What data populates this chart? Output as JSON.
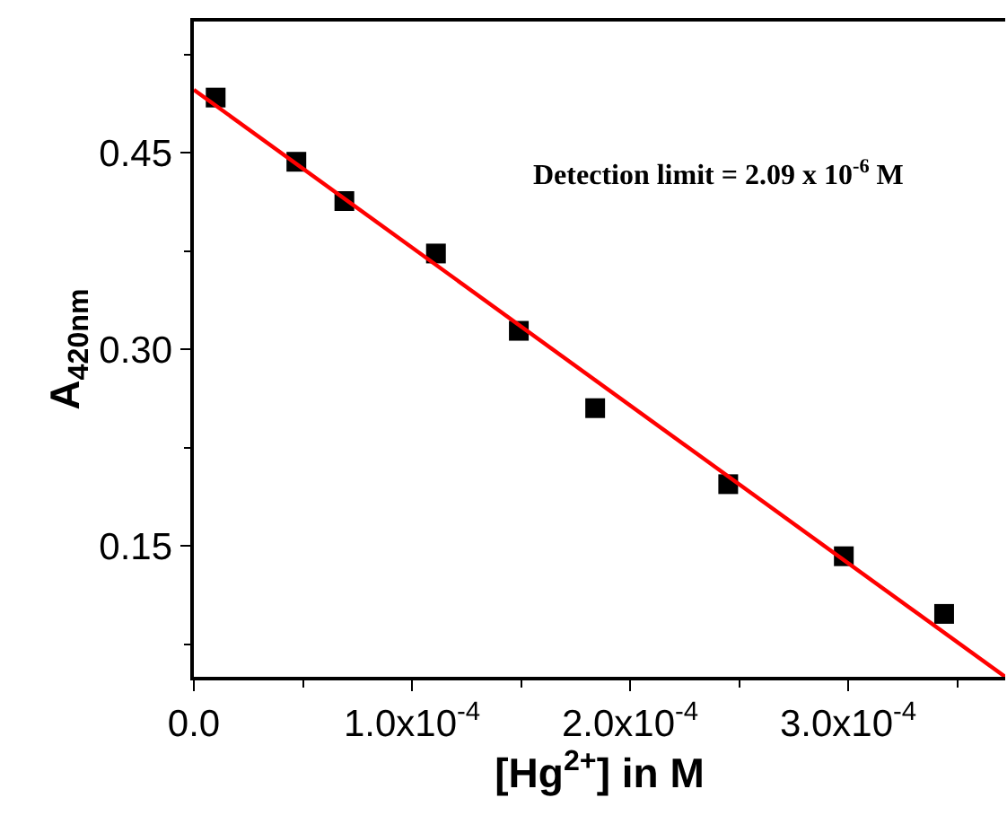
{
  "chart_data": {
    "type": "scatter",
    "xlabel": "[Hg$^{2+}$] in M",
    "ylabel": "A$_{420nm}$",
    "series": [
      {
        "color": "#000000",
        "marker": "square",
        "x": [
          1e-05,
          4.7e-05,
          6.9e-05,
          0.000111,
          0.000149,
          0.000184,
          0.000245,
          0.000298,
          0.000344
        ],
        "values": [
          0.492,
          0.443,
          0.413,
          0.373,
          0.314,
          0.255,
          0.197,
          0.142,
          0.098
        ]
      },
      {
        "type": "line",
        "color": "#ff0000",
        "line_style": "solid",
        "x": [
          0,
          0.000372
        ],
        "values": [
          0.498,
          0.05
        ]
      }
    ],
    "xlim": [
      0,
      0.000372
    ],
    "xticks": [
      {
        "value": 0,
        "label": "0.0"
      },
      {
        "value": 0.0001,
        "label": "1.0x10$^{-4}$"
      },
      {
        "value": 0.0002,
        "label": "2.0x10$^{-4}$"
      },
      {
        "value": 0.0003,
        "label": "3.0x10$^{-4}$"
      }
    ],
    "ylim": [
      0.05,
      0.55
    ],
    "yticks": [
      {
        "value": 0.15,
        "label": "0.15"
      },
      {
        "value": 0.3,
        "label": "0.30"
      },
      {
        "value": 0.45,
        "label": "0.45"
      }
    ],
    "annotations": [
      "Detection limit = 2.09 x 10$^{-6}$ M"
    ]
  }
}
